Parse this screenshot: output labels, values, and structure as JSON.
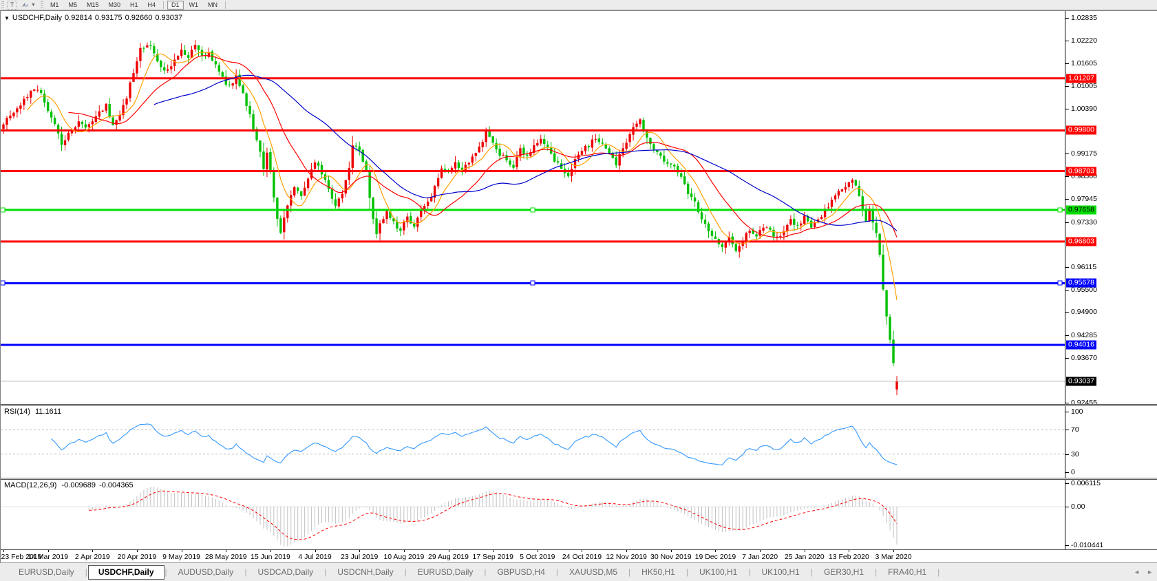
{
  "toolbar": {
    "text_tool": "T",
    "timeframes": [
      {
        "label": "M1",
        "active": false
      },
      {
        "label": "M5",
        "active": false
      },
      {
        "label": "M15",
        "active": false
      },
      {
        "label": "M30",
        "active": false
      },
      {
        "label": "H1",
        "active": false
      },
      {
        "label": "H4",
        "active": false
      },
      {
        "label": "D1",
        "active": true
      },
      {
        "label": "W1",
        "active": false
      },
      {
        "label": "MN",
        "active": false
      }
    ]
  },
  "chart": {
    "symbol_label": "USDCHF,Daily",
    "open": "0.92814",
    "high": "0.93175",
    "low": "0.92660",
    "close": "0.93037"
  },
  "rsi_panel": {
    "label": "RSI(14)",
    "value": "11.1611",
    "ticks": [
      "100",
      "70",
      "30",
      "0"
    ]
  },
  "macd_panel": {
    "label": "MACD(12,26,9)",
    "value1": "-0.009689",
    "value2": "-0.004365",
    "ticks": [
      "0.006115",
      "0.00",
      "-0.010441"
    ]
  },
  "dates": [
    "23 Feb 2019",
    "14 Mar 2019",
    "2 Apr 2019",
    "20 Apr 2019",
    "9 May 2019",
    "28 May 2019",
    "15 Jun 2019",
    "4 Jul 2019",
    "23 Jul 2019",
    "10 Aug 2019",
    "29 Aug 2019",
    "17 Sep 2019",
    "5 Oct 2019",
    "24 Oct 2019",
    "12 Nov 2019",
    "30 Nov 2019",
    "19 Dec 2019",
    "7 Jan 2020",
    "25 Jan 2020",
    "13 Feb 2020",
    "3 Mar 2020"
  ],
  "tabs": [
    {
      "label": "EURUSD,Daily",
      "active": false
    },
    {
      "label": "USDCHF,Daily",
      "active": true
    },
    {
      "label": "AUDUSD,Daily",
      "active": false
    },
    {
      "label": "USDCAD,Daily",
      "active": false
    },
    {
      "label": "USDCNH,Daily",
      "active": false
    },
    {
      "label": "EURUSD,Daily",
      "active": false
    },
    {
      "label": "GBPUSD,H4",
      "active": false
    },
    {
      "label": "XAUUSD,M5",
      "active": false
    },
    {
      "label": "HK50,H1",
      "active": false
    },
    {
      "label": "UK100,H1",
      "active": false
    },
    {
      "label": "UK100,H1",
      "active": false
    },
    {
      "label": "GER30,H1",
      "active": false
    },
    {
      "label": "FRA40,H1",
      "active": false
    }
  ],
  "chart_data": {
    "type": "candlestick",
    "symbol": "USDCHF",
    "timeframe": "Daily",
    "last_bar": {
      "open": 0.92814,
      "high": 0.93175,
      "low": 0.9266,
      "close": 0.93037
    },
    "bar_count": 262,
    "price_top": 1.03021,
    "price_bottom": 0.92419,
    "colors": {
      "bull": "#ee0000",
      "bear": "#00c000",
      "ma_fast": "#ffa000",
      "ma_mid": "#ff0000",
      "ma_slow": "#0000cc",
      "rsi_line": "#3399ff",
      "macd_hist": "#c0c0c0",
      "macd_signal": "#ff0000",
      "bid_line": "#b4b4b4"
    },
    "moving_averages": [
      {
        "period": 8,
        "colorKey": "ma_fast"
      },
      {
        "period": 20,
        "colorKey": "ma_mid"
      },
      {
        "period": 45,
        "colorKey": "ma_slow"
      }
    ],
    "axis_ticks": [
      1.02835,
      1.0222,
      1.01605,
      1.01005,
      1.0039,
      0.99175,
      0.9856,
      0.97945,
      0.9733,
      0.96115,
      0.955,
      0.949,
      0.94285,
      0.9367,
      0.92455
    ],
    "hlines": [
      {
        "price": 1.01207,
        "color": "#ff0000",
        "width": 3,
        "textColor": "#ffffff",
        "selected": false
      },
      {
        "price": 0.998,
        "color": "#ff0000",
        "width": 3,
        "textColor": "#ffffff",
        "selected": false
      },
      {
        "price": 0.98703,
        "color": "#ff0000",
        "width": 3,
        "textColor": "#ffffff",
        "selected": false
      },
      {
        "price": 0.97658,
        "color": "#00dd00",
        "width": 3,
        "textColor": "#000000",
        "selected": true
      },
      {
        "price": 0.96803,
        "color": "#ff0000",
        "width": 3,
        "textColor": "#ffffff",
        "selected": false
      },
      {
        "price": 0.95678,
        "color": "#0000ff",
        "width": 3,
        "textColor": "#ffffff",
        "selected": true
      },
      {
        "price": 0.94016,
        "color": "#0000ff",
        "width": 3,
        "textColor": "#ffffff",
        "selected": false
      }
    ],
    "bid": {
      "price": 0.93037,
      "labelBg": "#000000",
      "labelColor": "#ffffff"
    },
    "rsi": {
      "period": 14,
      "last": 11.1611,
      "levels": [
        70,
        30
      ],
      "range": [
        0,
        100
      ]
    },
    "macd": {
      "fast": 12,
      "slow": 26,
      "signal": 9,
      "last_main": -0.009689,
      "last_signal": -0.004365,
      "range": [
        -0.010441,
        0.006115
      ]
    },
    "anchors": [
      [
        0,
        1.0
      ],
      [
        3,
        1.003
      ],
      [
        6,
        1.0062
      ],
      [
        9,
        1.0096
      ],
      [
        11,
        1.0078
      ],
      [
        14,
        1.0018
      ],
      [
        17,
        0.9938
      ],
      [
        19,
        0.9968
      ],
      [
        22,
        1.0008
      ],
      [
        24,
        0.9986
      ],
      [
        27,
        1.0022
      ],
      [
        30,
        1.0046
      ],
      [
        32,
        0.9994
      ],
      [
        34,
        1.0016
      ],
      [
        36,
        1.007
      ],
      [
        38,
        1.014
      ],
      [
        40,
        1.0196
      ],
      [
        42,
        1.0216
      ],
      [
        44,
        1.0186
      ],
      [
        46,
        1.0152
      ],
      [
        48,
        1.014
      ],
      [
        50,
        1.0174
      ],
      [
        52,
        1.0198
      ],
      [
        54,
        1.0182
      ],
      [
        56,
        1.0204
      ],
      [
        58,
        1.0178
      ],
      [
        60,
        1.019
      ],
      [
        62,
        1.0152
      ],
      [
        64,
        1.012
      ],
      [
        66,
        1.0098
      ],
      [
        68,
        1.0126
      ],
      [
        70,
        1.0082
      ],
      [
        72,
        1.0022
      ],
      [
        74,
        0.9952
      ],
      [
        76,
        0.9882
      ],
      [
        77,
        0.992
      ],
      [
        78,
        0.9868
      ],
      [
        79,
        0.98
      ],
      [
        80,
        0.9742
      ],
      [
        81,
        0.9706
      ],
      [
        83,
        0.978
      ],
      [
        85,
        0.983
      ],
      [
        87,
        0.9808
      ],
      [
        89,
        0.985
      ],
      [
        91,
        0.9888
      ],
      [
        93,
        0.9868
      ],
      [
        95,
        0.9816
      ],
      [
        97,
        0.977
      ],
      [
        99,
        0.9812
      ],
      [
        101,
        0.988
      ],
      [
        102,
        0.9936
      ],
      [
        104,
        0.993
      ],
      [
        105,
        0.9896
      ],
      [
        106,
        0.9868
      ],
      [
        107,
        0.9798
      ],
      [
        108,
        0.974
      ],
      [
        109,
        0.9698
      ],
      [
        110,
        0.973
      ],
      [
        112,
        0.9764
      ],
      [
        114,
        0.9732
      ],
      [
        116,
        0.971
      ],
      [
        118,
        0.9742
      ],
      [
        120,
        0.9724
      ],
      [
        122,
        0.9762
      ],
      [
        124,
        0.979
      ],
      [
        126,
        0.9824
      ],
      [
        128,
        0.9878
      ],
      [
        130,
        0.9862
      ],
      [
        132,
        0.9894
      ],
      [
        134,
        0.9872
      ],
      [
        136,
        0.9898
      ],
      [
        138,
        0.9926
      ],
      [
        140,
        0.9952
      ],
      [
        141,
        0.9986
      ],
      [
        143,
        0.9948
      ],
      [
        145,
        0.9918
      ],
      [
        147,
        0.9896
      ],
      [
        149,
        0.9884
      ],
      [
        151,
        0.9928
      ],
      [
        153,
        0.9908
      ],
      [
        155,
        0.9942
      ],
      [
        157,
        0.9958
      ],
      [
        159,
        0.993
      ],
      [
        161,
        0.99
      ],
      [
        163,
        0.9876
      ],
      [
        165,
        0.9862
      ],
      [
        167,
        0.99
      ],
      [
        169,
        0.9926
      ],
      [
        171,
        0.994
      ],
      [
        173,
        0.9962
      ],
      [
        175,
        0.994
      ],
      [
        177,
        0.9912
      ],
      [
        179,
        0.9892
      ],
      [
        181,
        0.993
      ],
      [
        183,
        0.997
      ],
      [
        185,
        0.9998
      ],
      [
        186,
        1.0006
      ],
      [
        188,
        0.9958
      ],
      [
        190,
        0.9932
      ],
      [
        192,
        0.9906
      ],
      [
        194,
        0.9894
      ],
      [
        196,
        0.9886
      ],
      [
        198,
        0.9852
      ],
      [
        200,
        0.9812
      ],
      [
        202,
        0.9782
      ],
      [
        204,
        0.9742
      ],
      [
        206,
        0.9712
      ],
      [
        208,
        0.9684
      ],
      [
        210,
        0.9664
      ],
      [
        212,
        0.9694
      ],
      [
        214,
        0.965
      ],
      [
        216,
        0.9682
      ],
      [
        218,
        0.9714
      ],
      [
        220,
        0.9694
      ],
      [
        222,
        0.9724
      ],
      [
        224,
        0.971
      ],
      [
        226,
        0.969
      ],
      [
        228,
        0.9714
      ],
      [
        230,
        0.9734
      ],
      [
        232,
        0.972
      ],
      [
        234,
        0.9744
      ],
      [
        236,
        0.9714
      ],
      [
        238,
        0.974
      ],
      [
        240,
        0.9766
      ],
      [
        242,
        0.979
      ],
      [
        244,
        0.9812
      ],
      [
        246,
        0.9834
      ],
      [
        248,
        0.9846
      ],
      [
        249,
        0.9838
      ],
      [
        250,
        0.9806
      ],
      [
        251,
        0.9768
      ],
      [
        252,
        0.9742
      ],
      [
        253,
        0.9764
      ],
      [
        254,
        0.9736
      ],
      [
        255,
        0.97
      ],
      [
        256,
        0.964
      ],
      [
        257,
        0.9558
      ],
      [
        258,
        0.9476
      ],
      [
        259,
        0.941
      ],
      [
        260,
        0.9356
      ],
      [
        261,
        0.93037
      ]
    ],
    "noise": 0.0007
  }
}
